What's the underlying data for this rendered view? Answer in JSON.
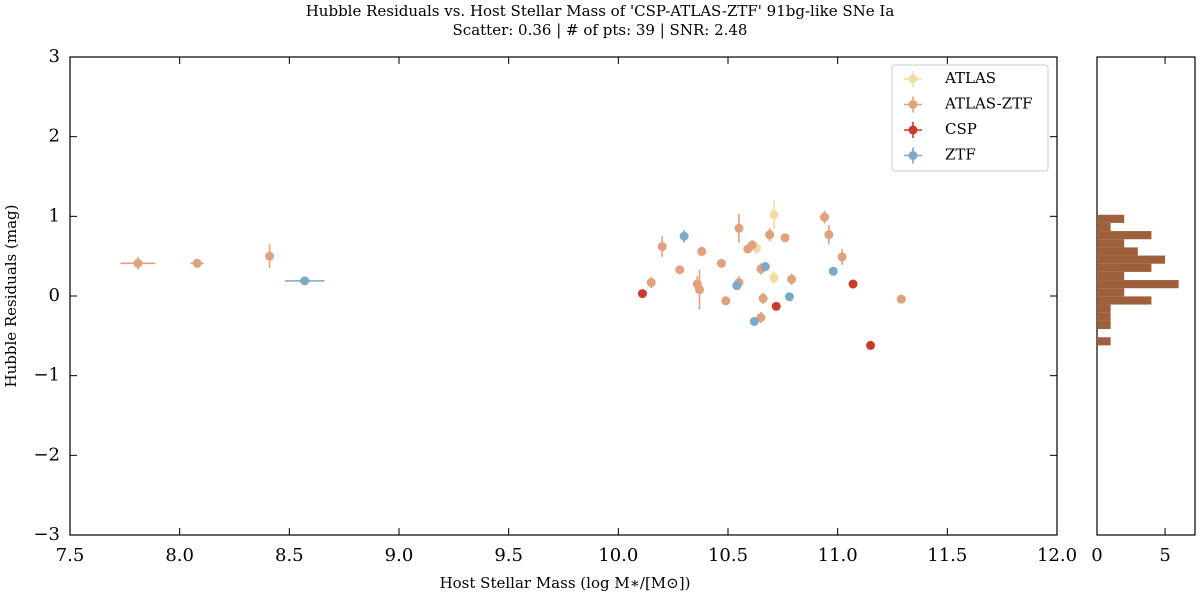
{
  "chart_data": [
    {
      "type": "scatter",
      "title": "Hubble Residuals vs. Host Stellar Mass of 'CSP-ATLAS-ZTF' 91bg-like SNe Ia",
      "subtitle": "Scatter: 0.36 | # of pts: 39 | SNR: 2.48",
      "x_label": "Host Stellar Mass (log M∗/[M⊙])",
      "y_label": "Hubble Residuals (mag)",
      "xlim": [
        7.5,
        12.0
      ],
      "ylim": [
        -3,
        3
      ],
      "xticks": [
        7.5,
        {
          "value": 8,
          "label": "8.0"
        },
        8.5,
        {
          "value": 9,
          "label": "9.0"
        },
        9.5,
        {
          "value": 10,
          "label": "10.0"
        },
        10.5,
        {
          "value": 11,
          "label": "11.0"
        },
        11.5,
        {
          "value": 12,
          "label": "12.0"
        }
      ],
      "yticks": [
        {
          "value": -3,
          "label": "−3"
        },
        {
          "value": -2,
          "label": "−2"
        },
        {
          "value": -1,
          "label": "−1"
        },
        0,
        1,
        2,
        3
      ],
      "legend": "upper right",
      "series": [
        {
          "name": "ATLAS",
          "color": "#f1dca4",
          "x": [
            10.71,
            10.63,
            10.71
          ],
          "values": [
            1.02,
            0.6,
            0.23
          ],
          "yerr": [
            0.18,
            0.08,
            0.08
          ],
          "xerr": [
            0.01,
            0.01,
            0.01
          ]
        },
        {
          "name": "ATLAS-ZTF",
          "color": "#e0a17c",
          "x": [
            7.81,
            8.08,
            8.41,
            10.15,
            10.2,
            10.28,
            10.36,
            10.37,
            10.38,
            10.47,
            10.49,
            10.55,
            10.55,
            10.59,
            10.61,
            10.65,
            10.65,
            10.66,
            10.69,
            10.76,
            10.79,
            10.94,
            10.96,
            11.02,
            11.29
          ],
          "values": [
            0.41,
            0.41,
            0.5,
            0.17,
            0.62,
            0.33,
            0.15,
            0.08,
            0.56,
            0.41,
            -0.06,
            0.85,
            0.17,
            0.59,
            0.64,
            0.34,
            -0.27,
            -0.03,
            0.77,
            0.73,
            0.21,
            0.99,
            0.77,
            0.49,
            -0.04
          ],
          "yerr": [
            0.08,
            0.04,
            0.15,
            0.07,
            0.13,
            0.04,
            0.1,
            0.25,
            0.06,
            0.04,
            0.04,
            0.18,
            0.08,
            0.05,
            0.06,
            0.07,
            0.07,
            0.07,
            0.08,
            0.04,
            0.07,
            0.08,
            0.12,
            0.1,
            0.04
          ],
          "xerr": [
            0.08,
            0.03,
            0.01,
            0.01,
            0.01,
            0.01,
            0.01,
            0.01,
            0.01,
            0.01,
            0.01,
            0.01,
            0.01,
            0.01,
            0.01,
            0.01,
            0.01,
            0.01,
            0.01,
            0.01,
            0.01,
            0.01,
            0.01,
            0.01,
            0.01
          ]
        },
        {
          "name": "CSP",
          "color": "#c83c2c",
          "x": [
            10.11,
            10.72,
            11.07,
            11.15
          ],
          "values": [
            0.03,
            -0.13,
            0.15,
            -0.62
          ],
          "yerr": [
            0.03,
            0.03,
            0.03,
            0.03
          ],
          "xerr": [
            0.01,
            0.01,
            0.01,
            0.01
          ]
        },
        {
          "name": "ZTF",
          "color": "#7aaac8",
          "x": [
            8.57,
            10.3,
            10.54,
            10.62,
            10.67,
            10.78,
            10.98
          ],
          "values": [
            0.19,
            0.75,
            0.13,
            -0.32,
            0.37,
            -0.01,
            0.31
          ],
          "yerr": [
            0.05,
            0.08,
            0.05,
            0.04,
            0.06,
            0.04,
            0.04
          ],
          "xerr": [
            0.09,
            0.01,
            0.01,
            0.01,
            0.01,
            0.01,
            0.01
          ]
        }
      ]
    },
    {
      "type": "histogram",
      "orientation": "horizontal",
      "color": "#9e603c",
      "bins": [
        -0.62,
        -0.5175,
        -0.415,
        -0.3125,
        -0.21,
        -0.1075,
        -0.005,
        0.0975,
        0.2,
        0.3025,
        0.405,
        0.5075,
        0.61,
        0.7125,
        0.815,
        0.9175,
        1.02
      ],
      "values": [
        1,
        0,
        1,
        1,
        1,
        4,
        2,
        6,
        2,
        4,
        5,
        3,
        2,
        4,
        1,
        2
      ],
      "xlim": [
        0,
        7.2
      ],
      "xticks": [
        0,
        5
      ],
      "ylim": [
        -3,
        3
      ]
    }
  ]
}
